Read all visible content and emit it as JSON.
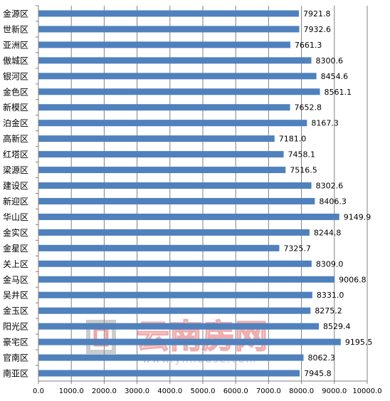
{
  "chart_data": {
    "type": "bar",
    "orientation": "horizontal",
    "categories": [
      "金源区",
      "世新区",
      "亚洲区",
      "傲城区",
      "银河区",
      "金色区",
      "新模区",
      "泊金区",
      "高新区",
      "红塔区",
      "梁源区",
      "建设区",
      "新迎区",
      "华山区",
      "金实区",
      "金星区",
      "关上区",
      "金马区",
      "吴井区",
      "金玉区",
      "阳光区",
      "豪宅区",
      "官南区",
      "南亚区"
    ],
    "values": [
      7921.8,
      7932.6,
      7661.3,
      8300.6,
      8454.6,
      8561.1,
      7652.8,
      8167.3,
      7181.0,
      7458.1,
      7516.5,
      8302.6,
      8406.3,
      9149.9,
      8244.8,
      7325.7,
      8309.0,
      9006.8,
      8331.0,
      8275.2,
      8529.4,
      9195.5,
      8062.3,
      7945.8
    ],
    "value_labels": [
      "7921.8",
      "7932.6",
      "7661.3",
      "8300.6",
      "8454.6",
      "8561.1",
      "7652.8",
      "8167.3",
      "7181.0",
      "7458.1",
      "7516.5",
      "8302.6",
      "8406.3",
      "9149.9",
      "8244.8",
      "7325.7",
      "8309.0",
      "9006.8",
      "8331.0",
      "8275.2",
      "8529.4",
      "9195.5",
      "8062.3",
      "7945.8"
    ],
    "xticks": [
      "0.0",
      "1000.0",
      "2000.0",
      "3000.0",
      "4000.0",
      "5000.0",
      "6000.0",
      "7000.0",
      "8000.0",
      "9000.0",
      "10000.0"
    ],
    "xlim": [
      0,
      10000
    ],
    "bar_color": "#4f81bd",
    "grid": "vertical",
    "legend": "none",
    "title": "",
    "xlabel": "",
    "ylabel": ""
  },
  "watermark": {
    "text": "云南房网",
    "url": "www.ynhouse.com"
  }
}
